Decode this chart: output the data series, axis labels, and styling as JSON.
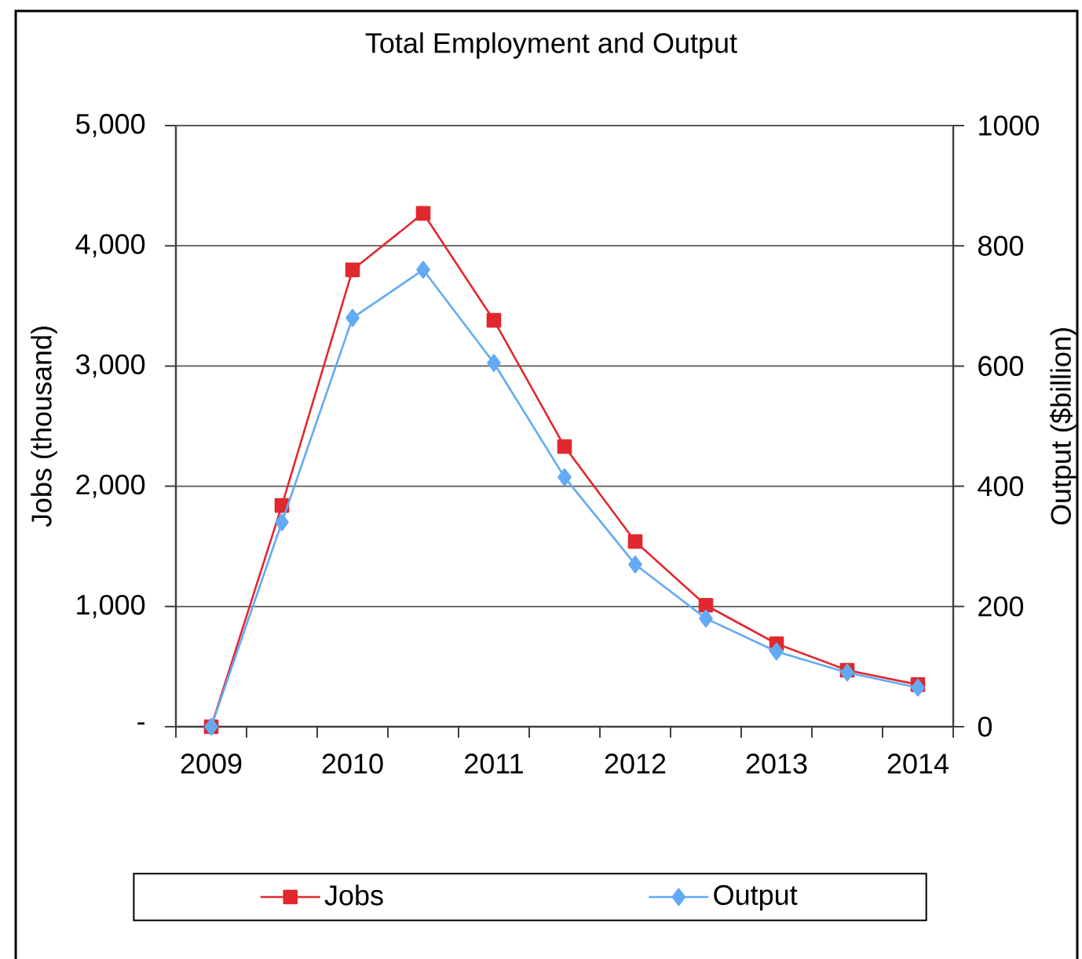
{
  "chart_data": {
    "type": "line",
    "title": "Total Employment and Output",
    "ylabel": "Jobs (thousand)",
    "y2label": "Output ($billion)",
    "categories": [
      "2009",
      null,
      "2010",
      null,
      "2011",
      null,
      "2012",
      null,
      "2013",
      null,
      "2014"
    ],
    "series": [
      {
        "name": "Jobs",
        "color": "#e2282f",
        "marker": "square",
        "values": [
          0,
          1840,
          3800,
          4270,
          3380,
          2330,
          1540,
          1010,
          690,
          470,
          350
        ]
      },
      {
        "name": "Output",
        "color": "#62aaf5",
        "marker": "diamond",
        "axis": "y2",
        "values": [
          0,
          340,
          680,
          760,
          605,
          415,
          270,
          180,
          125,
          90,
          65
        ]
      }
    ],
    "ylim": [
      0,
      5000
    ],
    "yticks": [
      {
        "value": 0,
        "label": "-"
      },
      {
        "value": 1000,
        "label": "1,000"
      },
      {
        "value": 2000,
        "label": "2,000"
      },
      {
        "value": 3000,
        "label": "3,000"
      },
      {
        "value": 4000,
        "label": "4,000"
      },
      {
        "value": 5000,
        "label": "5,000"
      }
    ],
    "y2lim": [
      0,
      1000
    ],
    "y2ticks": [
      0,
      200,
      400,
      600,
      800,
      1000
    ],
    "grid": "y",
    "legend": "bottom"
  }
}
